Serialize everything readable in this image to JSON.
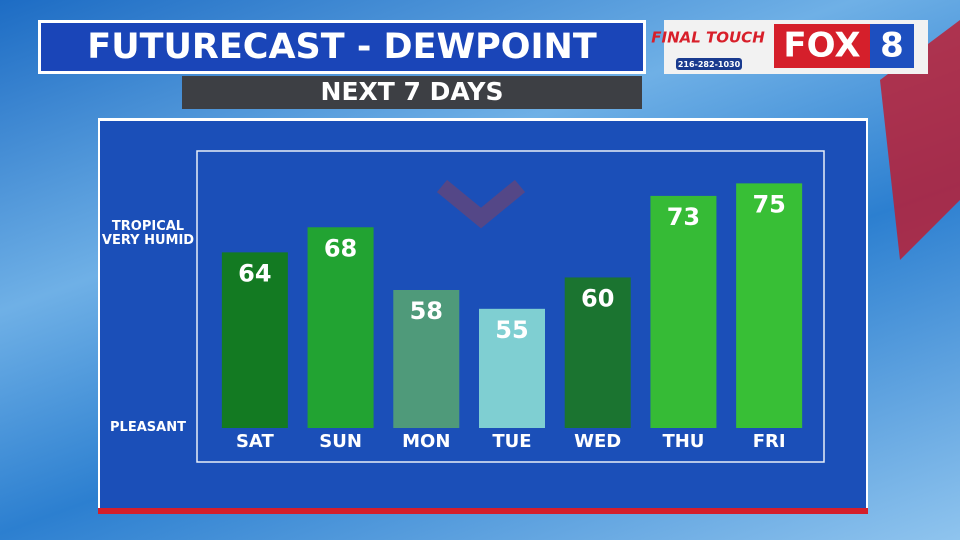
{
  "chart_data": {
    "type": "bar",
    "title": "FUTURECAST - DEWPOINT",
    "subtitle": "NEXT 7 DAYS",
    "categories": [
      "SAT",
      "SUN",
      "MON",
      "TUE",
      "WED",
      "THU",
      "FRI"
    ],
    "values": [
      64,
      68,
      58,
      55,
      60,
      73,
      75
    ],
    "colors": [
      "#137a22",
      "#22a332",
      "#4f9a7a",
      "#7fcfd2",
      "#1b7430",
      "#36bb36",
      "#38bf36"
    ],
    "ylim": [
      36,
      80
    ],
    "yticks": [
      {
        "value": 36,
        "label": "PLEASANT"
      },
      {
        "value": 67,
        "label": "TROPICAL VERY HUMID"
      }
    ]
  },
  "branding": {
    "sponsor": "FINAL TOUCH",
    "phone": "216-282-1030",
    "station": "FOX",
    "channel": "8"
  }
}
